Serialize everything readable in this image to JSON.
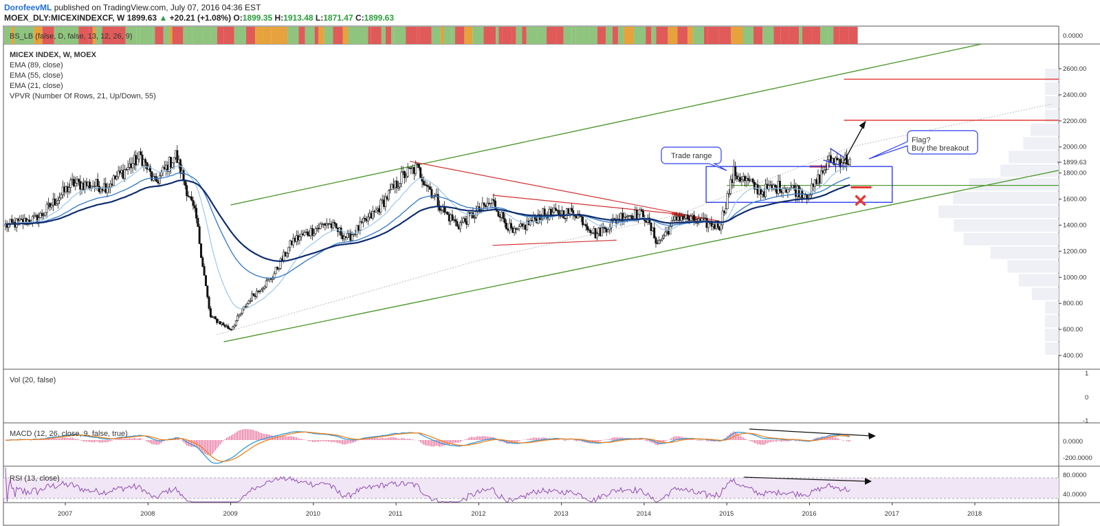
{
  "header": {
    "author": "DorofeevML",
    "published": "published on TradingView.com, July 07, 2016 04:36 EST",
    "symbol": "MOEX_DLY:MICEXINDEXCF, W",
    "last": "1899.63",
    "arrow": "▲",
    "change": "+20.21 (+1.08%)",
    "open_label": "O:",
    "open": "1899.35",
    "high_label": "H:",
    "high": "1913.48",
    "low_label": "L:",
    "low": "1871.47",
    "close_label": "C:",
    "close": "1899.63"
  },
  "indicators": {
    "bs_lb": "BS_LB (false, D, false, 13, 12, 26, 9)",
    "main_title": "MICEX INDEX, W, MOEX",
    "ema89": "EMA (89, close)",
    "ema55": "EMA (55, close)",
    "ema21": "EMA (21, close)",
    "vpvr": "VPVR (Number Of Rows, 21, Up/Down, 55)",
    "vol": "Vol (20, false)",
    "macd": "MACD (12, 26, close, 9, false, true)",
    "rsi": "RSI (13, close)"
  },
  "annotations": {
    "trade_range": "Trade range",
    "flag_line1": "Flag?",
    "flag_line2": "Buy the breakout"
  },
  "axes": {
    "bs_axis": "0.0000",
    "price_ticks": [
      "2600.00",
      "2400.00",
      "2200.00",
      "2000.00",
      "1800.00",
      "1600.00",
      "1400.00",
      "1200.00",
      "1000.00",
      "800.00",
      "600.00",
      "400.00"
    ],
    "last_price_tag": "1899.63",
    "vol_ticks": [
      "1",
      "0",
      "-1"
    ],
    "macd_ticks": [
      "0.0000",
      "-200.0000"
    ],
    "rsi_ticks": [
      "80.0000",
      "40.0000"
    ],
    "years": [
      "2007",
      "2008",
      "2009",
      "2010",
      "2011",
      "2012",
      "2013",
      "2014",
      "2015",
      "2016",
      "2017",
      "2018"
    ]
  },
  "colors": {
    "bs_green": "#8fc47e",
    "bs_red": "#e05a5a",
    "bs_orange": "#e6a23c",
    "channel_green": "#4f9a2f",
    "red_line": "#e53935",
    "box_blue": "#2d3ef0",
    "ema89": "#0d2c6e",
    "ema55": "#3b7ec8",
    "ema21": "#9cc7ea",
    "macd_line": "#2f9ad6",
    "signal_line": "#f07f1a",
    "rsi_line": "#8e4cb0",
    "rsi_band": "#f1e6f5"
  },
  "chart_data": {
    "type": "candlestick",
    "title": "MICEX INDEX, W, MOEX",
    "x_range": [
      "2006-03",
      "2018-12"
    ],
    "ylim": [
      350,
      2800
    ],
    "price_path": [
      {
        "date": "2006-03",
        "price": 1380
      },
      {
        "date": "2006-09",
        "price": 1450
      },
      {
        "date": "2007-02",
        "price": 1720
      },
      {
        "date": "2007-07",
        "price": 1700
      },
      {
        "date": "2007-12",
        "price": 1930
      },
      {
        "date": "2008-02",
        "price": 1720
      },
      {
        "date": "2008-05",
        "price": 1940
      },
      {
        "date": "2008-08",
        "price": 1450
      },
      {
        "date": "2008-10",
        "price": 700
      },
      {
        "date": "2009-01",
        "price": 600
      },
      {
        "date": "2009-04",
        "price": 850
      },
      {
        "date": "2009-07",
        "price": 1000
      },
      {
        "date": "2009-10",
        "price": 1280
      },
      {
        "date": "2010-03",
        "price": 1420
      },
      {
        "date": "2010-06",
        "price": 1300
      },
      {
        "date": "2010-10",
        "price": 1500
      },
      {
        "date": "2011-02",
        "price": 1780
      },
      {
        "date": "2011-04",
        "price": 1840
      },
      {
        "date": "2011-08",
        "price": 1500
      },
      {
        "date": "2011-10",
        "price": 1400
      },
      {
        "date": "2012-03",
        "price": 1580
      },
      {
        "date": "2012-06",
        "price": 1330
      },
      {
        "date": "2012-10",
        "price": 1480
      },
      {
        "date": "2013-03",
        "price": 1500
      },
      {
        "date": "2013-06",
        "price": 1330
      },
      {
        "date": "2013-10",
        "price": 1480
      },
      {
        "date": "2014-01",
        "price": 1480
      },
      {
        "date": "2014-03",
        "price": 1260
      },
      {
        "date": "2014-06",
        "price": 1470
      },
      {
        "date": "2014-09",
        "price": 1420
      },
      {
        "date": "2014-12",
        "price": 1400
      },
      {
        "date": "2015-02",
        "price": 1800
      },
      {
        "date": "2015-06",
        "price": 1660
      },
      {
        "date": "2015-09",
        "price": 1700
      },
      {
        "date": "2016-01",
        "price": 1640
      },
      {
        "date": "2016-04",
        "price": 1900
      },
      {
        "date": "2016-07",
        "price": 1899.63
      }
    ],
    "series": [
      {
        "name": "EMA (89, close)"
      },
      {
        "name": "EMA (55, close)"
      },
      {
        "name": "EMA (21, close)"
      }
    ],
    "levels": [
      {
        "price": 2500
      },
      {
        "price": 2200
      },
      {
        "price": 1680
      },
      {
        "price": 1700
      }
    ],
    "rsi_band": [
      40,
      80
    ],
    "grid": false,
    "legend": "top-left"
  }
}
